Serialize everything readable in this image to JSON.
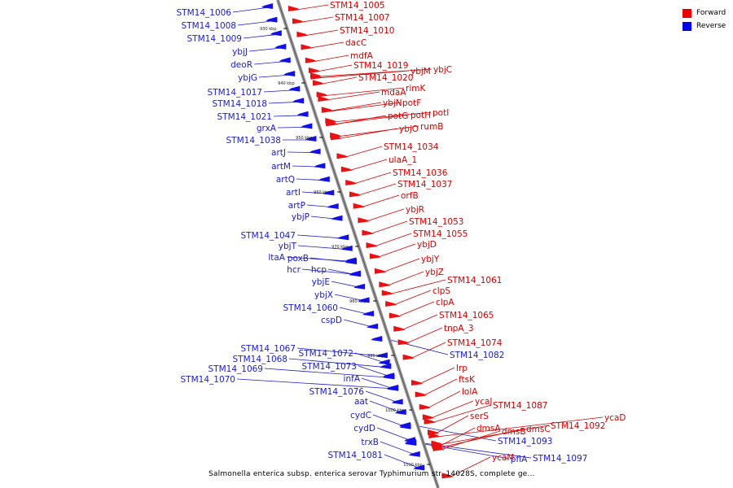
{
  "caption": "Salmonella enterica subsp. enterica serovar Typhimurium str. 14028S, complete ge...",
  "legend": [
    {
      "label": "Forward",
      "color": "#ee0000"
    },
    {
      "label": "Reverse",
      "color": "#0000ee"
    }
  ],
  "colors": {
    "forward_label": "#d40000",
    "reverse_label": "#1a1ad0",
    "backbone": "#777777"
  },
  "ticks": [
    "930 kbp",
    "940 kbp",
    "950 kbp",
    "960 kbp",
    "970 kbp",
    "980 kbp",
    "990 kbp",
    "1000 kbp",
    "1010 kbp"
  ],
  "reverse_genes": [
    "STM14_1006",
    "STM14_1008",
    "STM14_1009",
    "ybjJ",
    "deoR",
    "ybjG",
    "STM14_1017",
    "STM14_1018",
    "STM14_1021",
    "grxA",
    "STM14_1038",
    "artJ",
    "artM",
    "artQ",
    "artI",
    "artP",
    "ybjP",
    "STM14_1047",
    "ybjT",
    "ltaA",
    "poxB",
    "hcr",
    "hcp",
    "ybjE",
    "ybjX",
    "STM14_1060",
    "cspD",
    "STM14_1067",
    "STM14_1068",
    "STM14_1069",
    "STM14_1070",
    "STM14_1072",
    "STM14_1073",
    "infA",
    "STM14_1076",
    "aat",
    "cydC",
    "cydD",
    "trxB",
    "STM14_1081",
    "STM14_1082",
    "STM14_1093",
    "pflA",
    "STM14_1097"
  ],
  "forward_genes": [
    "STM14_1005",
    "STM14_1007",
    "STM14_1010",
    "dacC",
    "mdfA",
    "STM14_1019",
    "STM14_1020",
    "ybjM",
    "ybjC",
    "rimK",
    "mdaA",
    "ybjN",
    "potF",
    "potG",
    "potH",
    "potI",
    "ybjO",
    "rumB",
    "STM14_1034",
    "ulaA_1",
    "STM14_1036",
    "STM14_1037",
    "orfB",
    "ybjR",
    "STM14_1053",
    "STM14_1055",
    "ybjD",
    "ybjY",
    "ybjZ",
    "STM14_1061",
    "clpS",
    "clpA",
    "STM14_1065",
    "tnpA_3",
    "STM14_1074",
    "lrp",
    "ftsK",
    "lolA",
    "ycaJ",
    "STM14_1087",
    "serS",
    "dmsA",
    "dmsB",
    "dmsC",
    "STM14_1092",
    "ycaD",
    "ycaM"
  ]
}
